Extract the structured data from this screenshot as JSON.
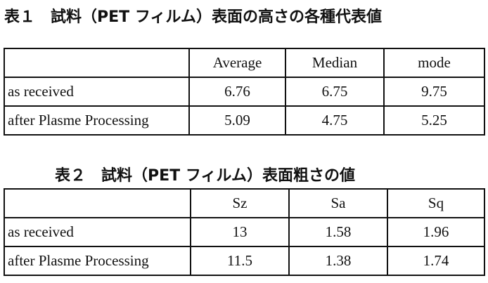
{
  "tables": [
    {
      "title": "表１　試料（PET フィルム）表面の高さの各種代表値",
      "header": [
        "Average",
        "Median",
        "mode"
      ],
      "rows": [
        [
          "as received",
          "6.76",
          "6.75",
          "9.75"
        ],
        [
          "after Plasme Processing",
          "5.09",
          "4.75",
          "5.25"
        ]
      ]
    },
    {
      "title": "表２　試料（PET フィルム）表面粗さの値",
      "header": [
        "Sz",
        "Sa",
        "Sq"
      ],
      "rows": [
        [
          "as received",
          "13",
          "1.58",
          "1.96"
        ],
        [
          "after Plasme Processing",
          "11.5",
          "1.38",
          "1.74"
        ]
      ]
    }
  ]
}
